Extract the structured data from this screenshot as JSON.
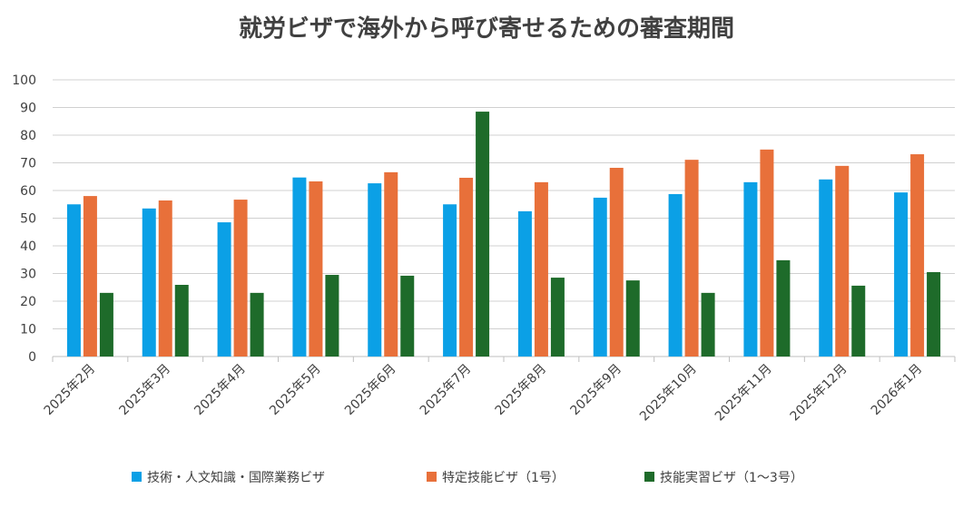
{
  "chart_data": {
    "type": "bar",
    "title": "就労ビザで海外から呼び寄せるための審査期間",
    "categories": [
      "2025年2月",
      "2025年3月",
      "2025年4月",
      "2025年5月",
      "2025年6月",
      "2025年7月",
      "2025年8月",
      "2025年9月",
      "2025年10月",
      "2025年11月",
      "2025年12月",
      "2026年1月"
    ],
    "series": [
      {
        "name": "技術・人文知識・国際業務ビザ",
        "color": "#0ba0e6",
        "values": [
          55,
          53.5,
          48.5,
          64.7,
          62.6,
          55,
          52.5,
          57.4,
          58.7,
          63,
          64,
          59.3
        ]
      },
      {
        "name": "特定技能ビザ（1号）",
        "color": "#e8703a",
        "values": [
          58,
          56.4,
          56.7,
          63.3,
          66.6,
          64.6,
          63,
          68.2,
          71.1,
          74.8,
          68.9,
          73.1
        ]
      },
      {
        "name": "技能実習ビザ（1〜3号）",
        "color": "#1e6b2a",
        "values": [
          23,
          25.9,
          23,
          29.5,
          29.2,
          88.5,
          28.5,
          27.5,
          23,
          34.8,
          25.6,
          30.5
        ]
      }
    ],
    "ylim": [
      0,
      100
    ],
    "yticks": [
      0,
      10,
      20,
      30,
      40,
      50,
      60,
      70,
      80,
      90,
      100
    ],
    "grid": true,
    "legend": "bottom"
  }
}
